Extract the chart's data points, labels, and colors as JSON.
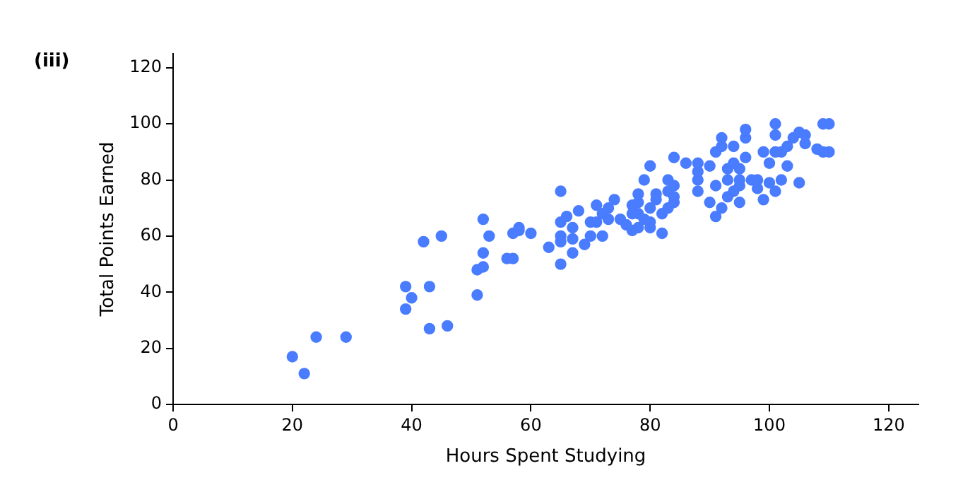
{
  "chart_data": {
    "type": "scatter",
    "title": "(iii)",
    "xlabel": "Hours Spent Studying",
    "ylabel": "Total Points Earned",
    "xlim": [
      0,
      125
    ],
    "ylim": [
      0,
      125
    ],
    "xticks": [
      0,
      20,
      40,
      60,
      80,
      100,
      120
    ],
    "yticks": [
      0,
      20,
      40,
      60,
      80,
      100,
      120
    ],
    "grid": false,
    "legend": false,
    "marker": "circle",
    "series": [
      {
        "color": "#4a7cff",
        "x": [
          20,
          22,
          24,
          29,
          39,
          39,
          40,
          42,
          43,
          43,
          45,
          46,
          51,
          51,
          52,
          52,
          52,
          53,
          56,
          57,
          57,
          58,
          58,
          60,
          63,
          65,
          65,
          65,
          65,
          65,
          66,
          67,
          67,
          67,
          68,
          69,
          70,
          70,
          71,
          71,
          72,
          72,
          73,
          73,
          74,
          75,
          76,
          77,
          77,
          77,
          78,
          78,
          78,
          78,
          79,
          79,
          80,
          80,
          80,
          80,
          81,
          81,
          82,
          82,
          83,
          83,
          83,
          84,
          84,
          84,
          84,
          86,
          88,
          88,
          88,
          88,
          90,
          90,
          91,
          91,
          91,
          92,
          92,
          92,
          93,
          93,
          93,
          94,
          94,
          94,
          95,
          95,
          95,
          95,
          96,
          96,
          96,
          97,
          98,
          98,
          99,
          99,
          100,
          100,
          101,
          101,
          101,
          101,
          102,
          102,
          103,
          103,
          104,
          105,
          105,
          106,
          106,
          108,
          109,
          110,
          110,
          109
        ],
        "values": [
          17,
          11,
          24,
          24,
          34,
          42,
          38,
          58,
          27,
          42,
          60,
          28,
          39,
          48,
          49,
          54,
          66,
          60,
          52,
          52,
          61,
          62,
          63,
          61,
          56,
          50,
          58,
          60,
          65,
          76,
          67,
          54,
          59,
          63,
          69,
          57,
          60,
          65,
          65,
          71,
          60,
          68,
          66,
          70,
          73,
          66,
          64,
          62,
          68,
          71,
          63,
          68,
          72,
          75,
          66,
          80,
          63,
          65,
          70,
          85,
          73,
          75,
          61,
          68,
          70,
          76,
          80,
          72,
          74,
          78,
          88,
          86,
          76,
          80,
          83,
          86,
          85,
          72,
          67,
          78,
          90,
          70,
          92,
          95,
          74,
          80,
          84,
          76,
          86,
          92,
          72,
          78,
          80,
          84,
          88,
          95,
          98,
          80,
          77,
          80,
          73,
          90,
          79,
          86,
          76,
          90,
          96,
          100,
          80,
          90,
          85,
          92,
          95,
          79,
          97,
          93,
          96,
          91,
          100,
          90,
          100,
          90
        ]
      }
    ]
  }
}
